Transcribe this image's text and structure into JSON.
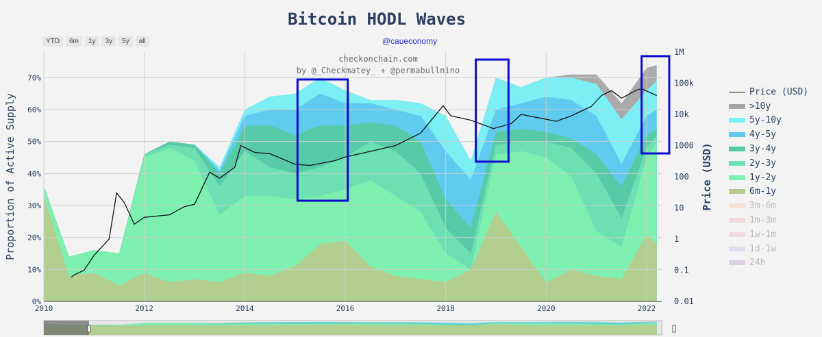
{
  "header": {
    "title": "Bitcoin HODL Waves",
    "subtitle": "@caueconomy",
    "range_buttons": [
      "YTD",
      "6m",
      "1y",
      "3y",
      "5y",
      "all"
    ]
  },
  "watermark": {
    "line1": "checkonchain.com",
    "line2": "by @_Checkmatey_ + @permabullnino"
  },
  "chart_data": {
    "type": "area",
    "title": "Bitcoin HODL Waves",
    "ylabel": "Proportion of Active Supply",
    "y2label": "Price (USD)",
    "xlim": [
      2010,
      2022.3
    ],
    "ylim": [
      0,
      0.78
    ],
    "y2_scale": "log",
    "y2lim": [
      0.01,
      1000000
    ],
    "x_ticks": [
      "2010",
      "2012",
      "2014",
      "2016",
      "2018",
      "2020",
      "2022"
    ],
    "y_ticks": [
      "0%",
      "10%",
      "20%",
      "30%",
      "40%",
      "50%",
      "60%",
      "70%"
    ],
    "y2_ticks": [
      "0.01",
      "0.1",
      "1",
      "10",
      "100",
      "1000",
      "10k",
      "100k",
      "1M"
    ],
    "grid": true,
    "legend_position": "right",
    "x": [
      2010.0,
      2010.5,
      2011.0,
      2011.5,
      2012.0,
      2012.5,
      2013.0,
      2013.5,
      2014.0,
      2014.5,
      2015.0,
      2015.5,
      2016.0,
      2016.5,
      2017.0,
      2017.5,
      2018.0,
      2018.5,
      2019.0,
      2019.5,
      2020.0,
      2020.5,
      2021.0,
      2021.5,
      2022.0,
      2022.2
    ],
    "series": [
      {
        "name": "6m-1y",
        "color": "#b5cc8e",
        "cumulative": [
          0.33,
          0.08,
          0.09,
          0.05,
          0.09,
          0.06,
          0.07,
          0.06,
          0.09,
          0.08,
          0.11,
          0.18,
          0.19,
          0.11,
          0.08,
          0.07,
          0.06,
          0.1,
          0.28,
          0.17,
          0.06,
          0.1,
          0.08,
          0.07,
          0.21,
          0.18
        ]
      },
      {
        "name": "1y-2y",
        "color": "#7ef0b0",
        "cumulative": [
          0.36,
          0.14,
          0.16,
          0.15,
          0.45,
          0.48,
          0.44,
          0.27,
          0.33,
          0.33,
          0.32,
          0.33,
          0.35,
          0.38,
          0.33,
          0.28,
          0.15,
          0.1,
          0.46,
          0.47,
          0.45,
          0.39,
          0.22,
          0.17,
          0.45,
          0.5
        ]
      },
      {
        "name": "2y-3y",
        "color": "#6fe0b3",
        "cumulative": [
          0.36,
          0.14,
          0.16,
          0.15,
          0.46,
          0.49,
          0.48,
          0.36,
          0.47,
          0.42,
          0.4,
          0.42,
          0.45,
          0.5,
          0.47,
          0.4,
          0.23,
          0.15,
          0.49,
          0.5,
          0.5,
          0.48,
          0.4,
          0.26,
          0.48,
          0.52
        ]
      },
      {
        "name": "3y-4y",
        "color": "#56c9a2",
        "cumulative": [
          0.36,
          0.14,
          0.16,
          0.15,
          0.46,
          0.5,
          0.49,
          0.4,
          0.55,
          0.55,
          0.52,
          0.55,
          0.55,
          0.56,
          0.55,
          0.5,
          0.32,
          0.23,
          0.53,
          0.54,
          0.53,
          0.51,
          0.46,
          0.36,
          0.52,
          0.54
        ]
      },
      {
        "name": "4y-5y",
        "color": "#5ec8ee",
        "cumulative": [
          0.36,
          0.14,
          0.16,
          0.15,
          0.46,
          0.5,
          0.49,
          0.41,
          0.58,
          0.6,
          0.6,
          0.65,
          0.62,
          0.62,
          0.6,
          0.58,
          0.47,
          0.38,
          0.6,
          0.62,
          0.64,
          0.63,
          0.58,
          0.43,
          0.58,
          0.6
        ]
      },
      {
        "name": "5y-10y",
        "color": "#78f2f8",
        "cumulative": [
          0.36,
          0.14,
          0.16,
          0.15,
          0.46,
          0.5,
          0.49,
          0.42,
          0.6,
          0.64,
          0.65,
          0.7,
          0.66,
          0.63,
          0.63,
          0.62,
          0.58,
          0.44,
          0.7,
          0.67,
          0.7,
          0.7,
          0.68,
          0.57,
          0.66,
          0.69
        ]
      },
      {
        "name": ">10y",
        "color": "#a5a5a5",
        "cumulative": [
          0.36,
          0.14,
          0.16,
          0.15,
          0.46,
          0.5,
          0.49,
          0.42,
          0.6,
          0.64,
          0.65,
          0.7,
          0.66,
          0.63,
          0.63,
          0.62,
          0.58,
          0.44,
          0.7,
          0.67,
          0.7,
          0.71,
          0.71,
          0.62,
          0.73,
          0.74
        ]
      }
    ],
    "empty_series": [
      {
        "name": "3m-6m",
        "color": "#f5c9b2"
      },
      {
        "name": "1m-3m",
        "color": "#f1b8b8"
      },
      {
        "name": "1w-1m",
        "color": "#eab7cf"
      },
      {
        "name": "1d-1w",
        "color": "#d1bde3"
      },
      {
        "name": "24h",
        "color": "#c3a6c9"
      }
    ],
    "price": {
      "name": "Price (USD)",
      "color": "#111111",
      "x": [
        2010.55,
        2010.6,
        2010.8,
        2011.0,
        2011.3,
        2011.45,
        2011.6,
        2011.8,
        2012.0,
        2012.5,
        2012.8,
        2013.0,
        2013.3,
        2013.5,
        2013.8,
        2013.92,
        2014.2,
        2014.5,
        2015.0,
        2015.3,
        2015.8,
        2016.0,
        2016.5,
        2017.0,
        2017.5,
        2017.95,
        2018.1,
        2018.5,
        2018.95,
        2019.3,
        2019.5,
        2019.9,
        2020.2,
        2020.5,
        2020.9,
        2021.1,
        2021.3,
        2021.5,
        2021.8,
        2021.9,
        2022.2
      ],
      "y": [
        0.06,
        0.07,
        0.1,
        0.3,
        1,
        30,
        15,
        3,
        5,
        6,
        11,
        13,
        140,
        90,
        200,
        1000,
        600,
        550,
        250,
        230,
        330,
        430,
        650,
        1000,
        2500,
        19000,
        9000,
        6500,
        3500,
        5000,
        10000,
        7500,
        6000,
        9000,
        18000,
        40000,
        58000,
        33000,
        60000,
        67000,
        40000
      ]
    },
    "highlight_boxes": [
      [
        2015.05,
        2016.05
      ],
      [
        2018.6,
        2019.25
      ],
      [
        2021.9,
        2022.45
      ]
    ],
    "range_slider": true
  },
  "legend_labels": {
    "price": "Price (USD)",
    "items": [
      ">10y",
      "5y-10y",
      "4y-5y",
      "3y-4y",
      "2y-3y",
      "1y-2y",
      "6m-1y",
      "3m-6m",
      "1m-3m",
      "1w-1m",
      "1d-1w",
      "24h"
    ]
  }
}
